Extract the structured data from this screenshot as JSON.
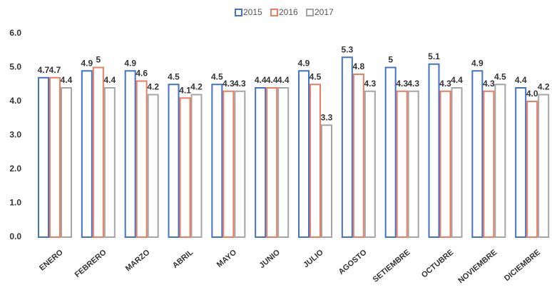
{
  "chart_data": {
    "type": "bar",
    "categories": [
      "ENERO",
      "FEBRERO",
      "MARZO",
      "ABRIL",
      "MAYO",
      "JUNIO",
      "JULIO",
      "AGOSTO",
      "SETIEMBRE",
      "OCTUBRE",
      "NOVIEMBRE",
      "DICIEMBRE"
    ],
    "series": [
      {
        "name": "2015",
        "color": "#4472c4",
        "values": [
          4.7,
          4.9,
          4.9,
          4.5,
          4.5,
          4.4,
          4.9,
          5.3,
          5,
          5.1,
          4.9,
          4.4
        ]
      },
      {
        "name": "2016",
        "color": "#ed7d61",
        "values": [
          4.7,
          5,
          4.6,
          4.1,
          4.3,
          4.4,
          4.5,
          4.8,
          4.3,
          4.3,
          4.3,
          4
        ],
        "value_labels": [
          "4.7",
          "5",
          "4.6",
          "4.1",
          "4.3",
          "4.4",
          "4.5",
          "4.8",
          "4.3",
          "4.3",
          "4.3",
          "4.0"
        ]
      },
      {
        "name": "2017",
        "color": "#a5a5a5",
        "values": [
          4.4,
          4.4,
          4.2,
          4.2,
          4.3,
          4.4,
          3.3,
          4.3,
          4.3,
          4.4,
          4.5,
          4.2
        ]
      }
    ],
    "ylim": [
      0,
      6
    ],
    "yticks": [
      {
        "value": 0,
        "label": "0.0"
      },
      {
        "value": 1,
        "label": "1.0"
      },
      {
        "value": 2,
        "label": "2.0"
      },
      {
        "value": 3,
        "label": "3.0"
      },
      {
        "value": 4,
        "label": "4.0"
      },
      {
        "value": 5,
        "label": "5.0"
      },
      {
        "value": 6,
        "label": "6.0"
      }
    ],
    "legend": "top"
  }
}
